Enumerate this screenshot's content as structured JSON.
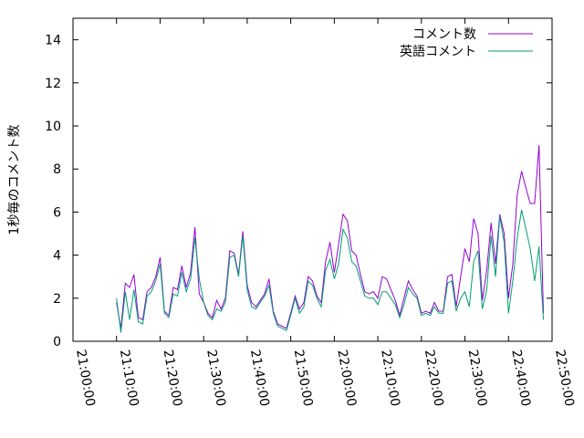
{
  "chart_data": {
    "type": "line",
    "ylabel": "1秒毎のコメント数",
    "xlabel": "",
    "ylim": [
      0,
      15
    ],
    "yticks": [
      0,
      2,
      4,
      6,
      8,
      10,
      12,
      14
    ],
    "xticks": [
      "21:00:00",
      "21:10:00",
      "21:20:00",
      "21:30:00",
      "21:40:00",
      "21:50:00",
      "22:00:00",
      "22:10:00",
      "22:20:00",
      "22:30:00",
      "22:40:00",
      "22:50:00"
    ],
    "xlim_minutes": [
      0,
      110
    ],
    "x_minutes": [
      10,
      11,
      12,
      13,
      14,
      15,
      16,
      17,
      18,
      19,
      20,
      21,
      22,
      23,
      24,
      25,
      26,
      27,
      28,
      29,
      30,
      31,
      32,
      33,
      34,
      35,
      36,
      37,
      38,
      39,
      40,
      41,
      42,
      43,
      44,
      45,
      46,
      47,
      48,
      49,
      50,
      51,
      52,
      53,
      54,
      55,
      56,
      57,
      58,
      59,
      60,
      61,
      62,
      63,
      64,
      65,
      66,
      67,
      68,
      69,
      70,
      71,
      72,
      73,
      74,
      75,
      76,
      77,
      78,
      79,
      80,
      81,
      82,
      83,
      84,
      85,
      86,
      87,
      88,
      89,
      90,
      91,
      92,
      93,
      94,
      95,
      96,
      97,
      98,
      99,
      100,
      101,
      102,
      103,
      104,
      105,
      106,
      107,
      108
    ],
    "series": [
      {
        "name": "コメント数",
        "color": "#9400d3",
        "values": [
          1.8,
          0.6,
          2.7,
          2.5,
          3.1,
          1.1,
          1.0,
          2.3,
          2.5,
          3.0,
          3.9,
          1.4,
          1.2,
          2.5,
          2.4,
          3.5,
          2.5,
          3.2,
          5.3,
          2.2,
          1.8,
          1.3,
          1.1,
          1.9,
          1.5,
          2.0,
          4.2,
          4.1,
          3.1,
          5.1,
          2.6,
          1.8,
          1.6,
          1.9,
          2.2,
          2.9,
          1.4,
          0.8,
          0.7,
          0.6,
          1.3,
          2.1,
          1.5,
          1.8,
          3.0,
          2.8,
          2.1,
          1.8,
          3.7,
          4.6,
          3.2,
          4.5,
          5.9,
          5.6,
          4.2,
          4.0,
          3.1,
          2.3,
          2.2,
          2.3,
          2.0,
          3.0,
          2.9,
          2.4,
          1.9,
          1.2,
          2.0,
          2.8,
          2.4,
          2.1,
          1.3,
          1.4,
          1.3,
          1.8,
          1.4,
          1.4,
          3.0,
          3.1,
          1.6,
          3.0,
          4.3,
          3.7,
          5.7,
          5.0,
          1.9,
          3.3,
          5.5,
          3.6,
          5.9,
          5.0,
          2.0,
          3.6,
          6.8,
          7.9,
          7.1,
          6.4,
          6.4,
          9.1,
          1.3
        ]
      },
      {
        "name": "英語コメント",
        "color": "#009e73",
        "values": [
          2.0,
          0.4,
          2.3,
          1.0,
          2.4,
          0.9,
          0.8,
          2.1,
          2.3,
          2.8,
          3.6,
          1.3,
          1.1,
          2.2,
          2.1,
          3.2,
          2.3,
          2.9,
          4.8,
          2.9,
          1.8,
          1.2,
          1.0,
          1.5,
          1.4,
          1.8,
          3.9,
          4.0,
          3.0,
          4.9,
          2.4,
          1.6,
          1.5,
          1.8,
          2.1,
          2.6,
          1.3,
          0.7,
          0.6,
          0.5,
          1.2,
          2.0,
          1.3,
          1.6,
          2.8,
          2.6,
          2.0,
          1.6,
          3.3,
          3.8,
          2.9,
          3.6,
          5.2,
          4.8,
          3.7,
          3.5,
          2.8,
          2.1,
          2.0,
          2.0,
          1.7,
          2.3,
          2.3,
          2.0,
          1.7,
          1.1,
          1.7,
          2.5,
          2.2,
          2.0,
          1.2,
          1.3,
          1.2,
          1.6,
          1.3,
          1.3,
          2.7,
          2.8,
          1.4,
          2.0,
          2.3,
          1.6,
          3.7,
          4.2,
          1.5,
          2.4,
          4.9,
          3.0,
          5.8,
          4.6,
          1.3,
          2.8,
          4.8,
          6.1,
          5.2,
          4.3,
          2.8,
          4.4,
          1.0
        ]
      }
    ],
    "legend": "top-right",
    "grid": false
  }
}
